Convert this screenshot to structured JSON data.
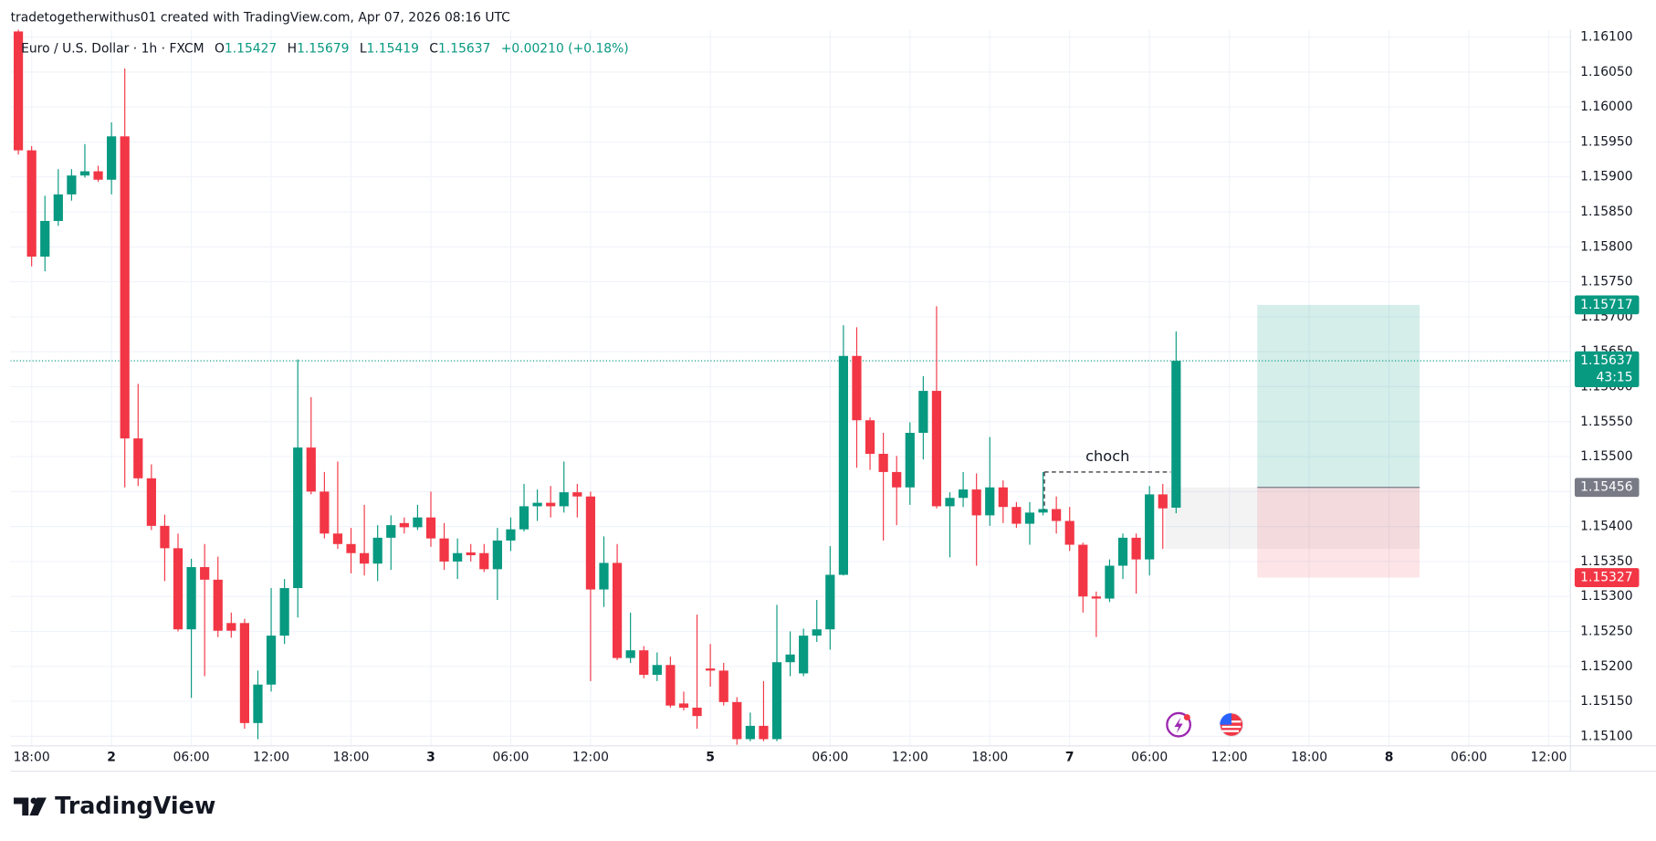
{
  "header": "tradetogetherwithus01 created with TradingView.com, Apr 07, 2026 08:16 UTC",
  "footer": "TradingView",
  "chart_data": {
    "type": "candlestick",
    "title": "Euro / U.S. Dollar · 1h · FXCM",
    "legend_keys": [
      "O",
      "H",
      "L",
      "C"
    ],
    "change": "+0.00210 (+0.18%)",
    "open": [
      1.16108,
      1.15938,
      1.15786,
      1.15837,
      1.15875,
      1.15902,
      1.15908,
      1.15896,
      1.15958,
      1.15526,
      1.15469,
      1.15401,
      1.15369,
      1.15253,
      1.15342,
      1.15324,
      1.15262,
      1.15262,
      1.15119,
      1.15174,
      1.15244,
      1.15312,
      1.15513,
      1.1545,
      1.1539,
      1.15375,
      1.15362,
      1.15347,
      1.15384,
      1.15405,
      1.15399,
      1.15413,
      1.15383,
      1.1535,
      1.15363,
      1.15362,
      1.15339,
      1.1538,
      1.15396,
      1.15429,
      1.15434,
      1.15429,
      1.15449,
      1.15443,
      1.1531,
      1.15348,
      1.15212,
      1.15223,
      1.15188,
      1.15202,
      1.15147,
      1.15141,
      1.15197,
      1.15194,
      1.15149,
      1.15096,
      1.15115,
      1.15096,
      1.15206,
      1.1519,
      1.15244,
      1.15253,
      1.15331,
      1.15644,
      1.15552,
      1.15504,
      1.15478,
      1.15456,
      1.15534,
      1.15594,
      1.15429,
      1.15441,
      1.15453,
      1.15416,
      1.15456,
      1.15428,
      1.15404,
      1.1542,
      1.15425,
      1.15408,
      1.15374,
      1.153,
      1.15297,
      1.15344,
      1.15384,
      1.15353,
      1.15446,
      1.15427
    ],
    "high": [
      1.1613,
      1.15944,
      1.15873,
      1.15911,
      1.15911,
      1.15947,
      1.15916,
      1.15978,
      1.16055,
      1.15604,
      1.15489,
      1.15417,
      1.1539,
      1.15354,
      1.15375,
      1.15357,
      1.15277,
      1.15268,
      1.15194,
      1.15312,
      1.15325,
      1.15639,
      1.15585,
      1.15478,
      1.15493,
      1.15398,
      1.15431,
      1.15402,
      1.15416,
      1.15413,
      1.15431,
      1.1545,
      1.15405,
      1.15383,
      1.15375,
      1.15375,
      1.15398,
      1.15413,
      1.15461,
      1.15453,
      1.15458,
      1.15493,
      1.15461,
      1.1545,
      1.15386,
      1.15375,
      1.15277,
      1.15229,
      1.1522,
      1.15214,
      1.15164,
      1.15274,
      1.15232,
      1.15205,
      1.15156,
      1.15134,
      1.15179,
      1.15288,
      1.1525,
      1.15254,
      1.15295,
      1.15372,
      1.15688,
      1.15685,
      1.15556,
      1.15534,
      1.15501,
      1.15549,
      1.15615,
      1.15715,
      1.15449,
      1.15478,
      1.15476,
      1.15528,
      1.15466,
      1.15435,
      1.15435,
      1.15478,
      1.15443,
      1.15428,
      1.15377,
      1.15307,
      1.15353,
      1.1539,
      1.1539,
      1.15458,
      1.15461,
      1.15679
    ],
    "low": [
      1.15932,
      1.15772,
      1.15765,
      1.1583,
      1.15866,
      1.15899,
      1.15893,
      1.15875,
      1.15456,
      1.15458,
      1.15395,
      1.15322,
      1.1525,
      1.15155,
      1.15186,
      1.15242,
      1.15241,
      1.15111,
      1.15096,
      1.15164,
      1.15232,
      1.1527,
      1.15446,
      1.15383,
      1.15368,
      1.15333,
      1.1533,
      1.15322,
      1.15338,
      1.1539,
      1.15395,
      1.15371,
      1.15338,
      1.15325,
      1.1535,
      1.15335,
      1.15295,
      1.15365,
      1.15393,
      1.15408,
      1.15413,
      1.1542,
      1.15413,
      1.15179,
      1.15285,
      1.15209,
      1.15205,
      1.15183,
      1.15179,
      1.15141,
      1.15137,
      1.15111,
      1.15171,
      1.15144,
      1.15088,
      1.15093,
      1.15093,
      1.15093,
      1.15186,
      1.15186,
      1.15235,
      1.15224,
      1.1533,
      1.15484,
      1.15481,
      1.1538,
      1.15402,
      1.15431,
      1.15496,
      1.15426,
      1.15356,
      1.15428,
      1.15344,
      1.15401,
      1.15405,
      1.15398,
      1.15374,
      1.15416,
      1.1539,
      1.15365,
      1.15277,
      1.15242,
      1.15292,
      1.15325,
      1.15304,
      1.1533,
      1.15368,
      1.15419
    ],
    "close": [
      1.15938,
      1.15786,
      1.15837,
      1.15875,
      1.15902,
      1.15908,
      1.15896,
      1.15958,
      1.15526,
      1.15469,
      1.15401,
      1.15369,
      1.15253,
      1.15342,
      1.15324,
      1.15251,
      1.15251,
      1.15119,
      1.15174,
      1.15244,
      1.15312,
      1.15513,
      1.1545,
      1.1539,
      1.15375,
      1.15362,
      1.15347,
      1.15384,
      1.15402,
      1.15399,
      1.15413,
      1.15383,
      1.1535,
      1.15362,
      1.15359,
      1.15339,
      1.1538,
      1.15396,
      1.15429,
      1.15434,
      1.15429,
      1.15449,
      1.15443,
      1.1531,
      1.15348,
      1.15212,
      1.15223,
      1.15188,
      1.15202,
      1.15144,
      1.15141,
      1.15129,
      1.15194,
      1.15149,
      1.15096,
      1.15115,
      1.15096,
      1.15206,
      1.15217,
      1.15244,
      1.15253,
      1.15331,
      1.15644,
      1.15552,
      1.15504,
      1.15478,
      1.15456,
      1.15534,
      1.15594,
      1.15429,
      1.15441,
      1.15453,
      1.15416,
      1.15456,
      1.15428,
      1.15404,
      1.1542,
      1.15425,
      1.15408,
      1.15374,
      1.153,
      1.15297,
      1.15344,
      1.15384,
      1.15353,
      1.15446,
      1.15426,
      1.15637
    ],
    "up_color": "#089981",
    "down_color": "#f23645",
    "xlim": [
      -0.6,
      116.6
    ],
    "xticks": [
      {
        "value": 1,
        "label": "18:00"
      },
      {
        "value": 7,
        "label": "2"
      },
      {
        "value": 13,
        "label": "06:00"
      },
      {
        "value": 19,
        "label": "12:00"
      },
      {
        "value": 25,
        "label": "18:00"
      },
      {
        "value": 31,
        "label": "3"
      },
      {
        "value": 37,
        "label": "06:00"
      },
      {
        "value": 43,
        "label": "12:00"
      },
      {
        "value": 52,
        "label": "5"
      },
      {
        "value": 61,
        "label": "06:00"
      },
      {
        "value": 67,
        "label": "12:00"
      },
      {
        "value": 73,
        "label": "18:00"
      },
      {
        "value": 79,
        "label": "7"
      },
      {
        "value": 85,
        "label": "06:00"
      },
      {
        "value": 91,
        "label": "12:00"
      },
      {
        "value": 97,
        "label": "18:00"
      },
      {
        "value": 103,
        "label": "8"
      },
      {
        "value": 109,
        "label": "06:00"
      },
      {
        "value": 115,
        "label": "12:00"
      }
    ],
    "ylim": [
      1.15085,
      1.1611
    ],
    "yticks": [
      {
        "value": 1.151,
        "label": "1.15100"
      },
      {
        "value": 1.1515,
        "label": "1.15150"
      },
      {
        "value": 1.152,
        "label": "1.15200"
      },
      {
        "value": 1.1525,
        "label": "1.15250"
      },
      {
        "value": 1.153,
        "label": "1.15300"
      },
      {
        "value": 1.1535,
        "label": "1.15350"
      },
      {
        "value": 1.154,
        "label": "1.15400"
      },
      {
        "value": 1.1545,
        "label": "1.15450"
      },
      {
        "value": 1.155,
        "label": "1.15500"
      },
      {
        "value": 1.1555,
        "label": "1.15550"
      },
      {
        "value": 1.156,
        "label": "1.15600"
      },
      {
        "value": 1.1565,
        "label": "1.15650"
      },
      {
        "value": 1.157,
        "label": "1.15700"
      },
      {
        "value": 1.1575,
        "label": "1.15750"
      },
      {
        "value": 1.158,
        "label": "1.15800"
      },
      {
        "value": 1.1585,
        "label": "1.15850"
      },
      {
        "value": 1.159,
        "label": "1.15900"
      },
      {
        "value": 1.1595,
        "label": "1.15950"
      },
      {
        "value": 1.16,
        "label": "1.16000"
      },
      {
        "value": 1.1605,
        "label": "1.16050"
      },
      {
        "value": 1.161,
        "label": "1.16100"
      }
    ],
    "grid": true,
    "countdown": "43:15",
    "position": {
      "x": [
        93.1,
        105.3
      ],
      "target": 1.15717,
      "entry": 1.15456,
      "stop": 1.15327
    },
    "zone": {
      "x": [
        86.2,
        105.3
      ],
      "top": 1.15456,
      "bottom": 1.15368
    },
    "choch": {
      "label": "choch",
      "x": [
        77.1,
        86.6
      ],
      "price": 1.15478
    }
  }
}
